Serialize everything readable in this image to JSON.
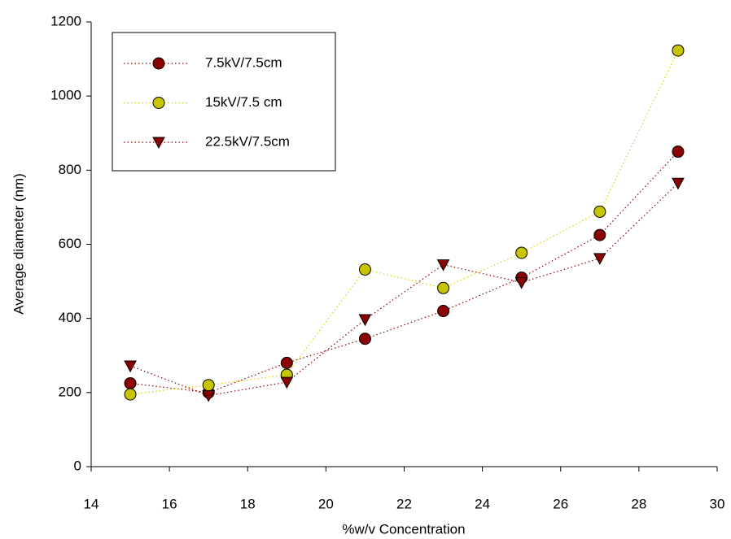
{
  "chart_data": {
    "type": "line",
    "xlabel": "%w/v Concentration",
    "ylabel": "Average diameter (nm)",
    "x": [
      15,
      17,
      19,
      21,
      23,
      25,
      27,
      29
    ],
    "xlim": [
      14,
      30
    ],
    "xticks": [
      14,
      16,
      18,
      20,
      22,
      24,
      26,
      28,
      30
    ],
    "ylim": [
      0,
      1200
    ],
    "yticks": [
      0,
      200,
      400,
      600,
      800,
      1000,
      1200
    ],
    "grid": false,
    "legend": "upper left",
    "series": [
      {
        "name": "7.5kV/7.5cm",
        "color": "#8b0000",
        "line_color": "#8b0000",
        "marker": "circle",
        "values": [
          225,
          200,
          280,
          345,
          420,
          510,
          625,
          850
        ]
      },
      {
        "name": "15kV/7.5 cm",
        "color": "#c8c400",
        "line_color": "#d8d400",
        "marker": "circle",
        "values": [
          195,
          220,
          248,
          532,
          482,
          577,
          688,
          1123
        ]
      },
      {
        "name": "22.5kV/7.5cm",
        "color": "#8b0000",
        "line_color": "#8b0000",
        "marker": "triangle-down",
        "values": [
          272,
          192,
          228,
          397,
          545,
          497,
          562,
          765
        ]
      }
    ]
  }
}
